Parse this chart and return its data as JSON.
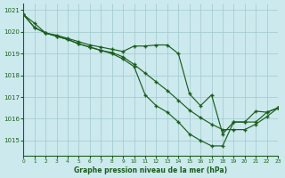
{
  "xlabel": "Graphe pression niveau de la mer (hPa)",
  "xlim": [
    0,
    23
  ],
  "ylim": [
    1014.3,
    1021.3
  ],
  "yticks": [
    1015,
    1016,
    1017,
    1018,
    1019,
    1020,
    1021
  ],
  "xticks": [
    0,
    1,
    2,
    3,
    4,
    5,
    6,
    7,
    8,
    9,
    10,
    11,
    12,
    13,
    14,
    15,
    16,
    17,
    18,
    19,
    20,
    21,
    22,
    23
  ],
  "bg_color": "#cce9ee",
  "grid_color": "#a0c8cc",
  "line_color": "#1a5e1a",
  "series1_x": [
    0,
    1,
    2,
    3,
    4,
    5,
    6,
    7,
    8,
    9,
    10,
    11,
    12,
    13,
    14,
    15,
    16,
    17,
    18,
    19,
    20,
    21,
    22,
    23
  ],
  "series1_y": [
    1020.8,
    1020.4,
    1019.95,
    1019.85,
    1019.7,
    1019.55,
    1019.4,
    1019.3,
    1019.2,
    1019.1,
    1019.35,
    1019.35,
    1019.4,
    1019.4,
    1019.0,
    1017.15,
    1016.6,
    1017.1,
    1015.3,
    1015.85,
    1015.85,
    1016.35,
    1016.3,
    1016.5
  ],
  "series2_x": [
    0,
    1,
    2,
    3,
    4,
    5,
    6,
    7,
    8,
    9,
    10,
    11,
    12,
    13,
    14,
    15,
    16,
    17,
    18,
    19,
    20,
    21,
    22,
    23
  ],
  "series2_y": [
    1020.8,
    1020.2,
    1019.95,
    1019.8,
    1019.65,
    1019.45,
    1019.3,
    1019.15,
    1019.05,
    1018.85,
    1018.5,
    1018.1,
    1017.7,
    1017.3,
    1016.85,
    1016.4,
    1016.05,
    1015.75,
    1015.5,
    1015.5,
    1015.5,
    1015.75,
    1016.1,
    1016.5
  ],
  "series3_x": [
    0,
    1,
    2,
    3,
    4,
    5,
    6,
    7,
    8,
    9,
    10,
    11,
    12,
    13,
    14,
    15,
    16,
    17,
    18,
    19,
    20,
    21,
    22,
    23
  ],
  "series3_y": [
    1020.8,
    1020.2,
    1019.95,
    1019.8,
    1019.65,
    1019.45,
    1019.3,
    1019.15,
    1019.0,
    1018.75,
    1018.4,
    1017.1,
    1016.6,
    1016.3,
    1015.85,
    1015.3,
    1015.0,
    1014.75,
    1014.75,
    1015.85,
    1015.85,
    1015.85,
    1016.3,
    1016.5
  ]
}
